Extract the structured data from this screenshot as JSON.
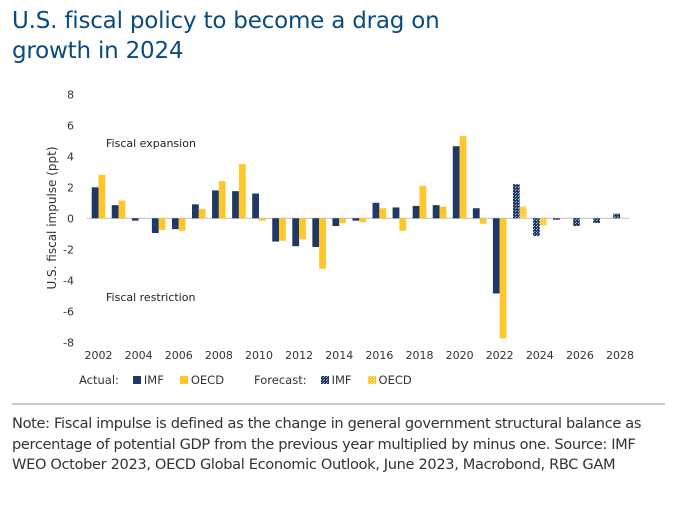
{
  "title": "U.S. fiscal policy to become a drag on growth in 2024",
  "colors": {
    "title": "#0b4a80",
    "imf": "#1f3864",
    "oecd": "#ffc72c",
    "zero_line": "#bfbfbf"
  },
  "chart_data": {
    "type": "bar",
    "title": "U.S. fiscal policy to become a drag on growth in 2024",
    "xlabel": "",
    "ylabel": "U.S. fiscal impulse (ppt)",
    "ylim": [
      -8,
      8
    ],
    "yticks": [
      8,
      6,
      4,
      2,
      0,
      -2,
      -4,
      -6,
      -8
    ],
    "grid": false,
    "categories": [
      "2002",
      "2003",
      "2004",
      "2005",
      "2006",
      "2007",
      "2008",
      "2009",
      "2010",
      "2011",
      "2012",
      "2013",
      "2014",
      "2015",
      "2016",
      "2017",
      "2018",
      "2019",
      "2020",
      "2021",
      "2022",
      "2023",
      "2024",
      "2025",
      "2026",
      "2027",
      "2028"
    ],
    "xtick_labels": [
      "2002",
      "2004",
      "2006",
      "2008",
      "2010",
      "2012",
      "2014",
      "2016",
      "2018",
      "2020",
      "2022",
      "2024",
      "2026",
      "2028"
    ],
    "forecast_start": "2023",
    "series": [
      {
        "name": "IMF",
        "values": [
          2.0,
          0.85,
          -0.15,
          -0.95,
          -0.7,
          0.9,
          1.8,
          1.75,
          1.6,
          -1.5,
          -1.8,
          -1.85,
          -0.5,
          -0.15,
          1.0,
          0.7,
          0.8,
          0.85,
          4.65,
          0.65,
          -4.85,
          2.2,
          -1.15,
          -0.1,
          -0.5,
          -0.3,
          0.3
        ]
      },
      {
        "name": "OECD",
        "values": [
          2.8,
          1.15,
          null,
          -0.75,
          -0.8,
          0.6,
          2.4,
          3.5,
          -0.15,
          -1.45,
          -1.35,
          -3.25,
          -0.3,
          -0.25,
          0.65,
          -0.8,
          2.1,
          0.75,
          5.3,
          -0.35,
          -7.75,
          0.75,
          -0.45,
          null,
          null,
          null,
          null
        ]
      }
    ],
    "annotations": [
      "Fiscal expansion",
      "Fiscal restriction"
    ],
    "legend": {
      "placement": "bottom",
      "groups": [
        {
          "label": "Actual:",
          "items": [
            {
              "name": "IMF",
              "style": "solid"
            },
            {
              "name": "OECD",
              "style": "solid"
            }
          ]
        },
        {
          "label": "Forecast:",
          "items": [
            {
              "name": "IMF",
              "style": "hatched"
            },
            {
              "name": "OECD",
              "style": "hatched"
            }
          ]
        }
      ]
    }
  },
  "note": "Note: Fiscal impulse is defined as the change in general government structural balance as percentage of potential GDP from the previous year multiplied by minus one. Source: IMF WEO October 2023, OECD Global Economic Outlook, June 2023, Macrobond, RBC GAM"
}
